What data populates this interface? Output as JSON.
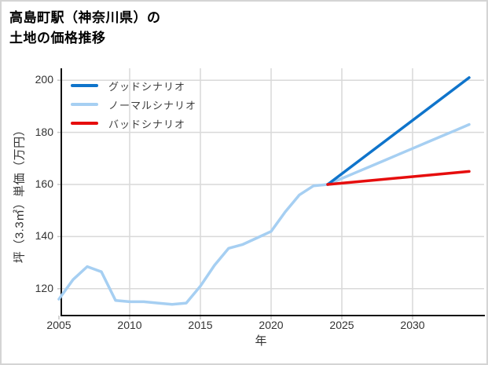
{
  "title_lines": [
    "高島町駅（神奈川県）の",
    "土地の価格推移"
  ],
  "colors": {
    "good": "#0f74cb",
    "normal": "#a6cff2",
    "bad": "#e60d0d",
    "grid": "#d9d9d9",
    "tick_mark": "#c4c4c4",
    "spine": "#111111",
    "tick_text": "#333333",
    "legend_text": "#3d3d3d",
    "frame_border": "#d4d4d4"
  },
  "chart_data": {
    "type": "line",
    "title": "高島町駅（神奈川県）の土地の価格推移",
    "xlabel": "年",
    "ylabel": "坪（3.3㎡）単価（万円）",
    "xticks": [
      2005,
      2010,
      2015,
      2020,
      2025,
      2030
    ],
    "yticks": [
      120,
      140,
      160,
      180,
      200
    ],
    "xlim": [
      2005,
      2035
    ],
    "ylim": [
      110,
      204
    ],
    "grid": true,
    "legend_position": "upper-left",
    "series": [
      {
        "name": "グッドシナリオ",
        "color": "#0f74cb",
        "x": [
          2024,
          2034
        ],
        "values": [
          160,
          201
        ]
      },
      {
        "name": "ノーマルシナリオ",
        "color": "#a6cff2",
        "x": [
          2005,
          2006,
          2007,
          2008,
          2009,
          2010,
          2011,
          2012,
          2013,
          2014,
          2015,
          2016,
          2017,
          2018,
          2019,
          2020,
          2021,
          2022,
          2023,
          2024,
          2025,
          2026,
          2027,
          2028,
          2029,
          2030,
          2031,
          2032,
          2033,
          2034
        ],
        "values": [
          116,
          123.5,
          128.5,
          126.5,
          115.5,
          115,
          115,
          114.5,
          114,
          114.5,
          121,
          129,
          135.5,
          137,
          139.5,
          142,
          149.5,
          156,
          159.5,
          160,
          162.3,
          164.6,
          166.9,
          169.2,
          171.5,
          173.8,
          176.1,
          178.4,
          180.7,
          183
        ]
      },
      {
        "name": "バッドシナリオ",
        "color": "#e60d0d",
        "x": [
          2024,
          2034
        ],
        "values": [
          160,
          165
        ]
      }
    ]
  }
}
